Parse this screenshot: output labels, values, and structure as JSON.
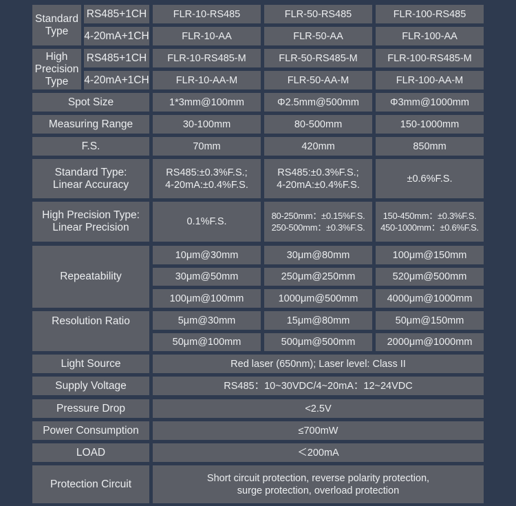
{
  "rows": {
    "standard_type": {
      "label": "Standard\nType",
      "sub": [
        {
          "label": "RS485+1CH",
          "values": [
            "FLR-10-RS485",
            "FLR-50-RS485",
            "FLR-100-RS485"
          ]
        },
        {
          "label": "4-20mA+1CH",
          "values": [
            "FLR-10-AA",
            "FLR-50-AA",
            "FLR-100-AA"
          ]
        }
      ]
    },
    "high_precision_type": {
      "label": "High\nPrecision\nType",
      "sub": [
        {
          "label": "RS485+1CH",
          "values": [
            "FLR-10-RS485-M",
            "FLR-50-RS485-M",
            "FLR-100-RS485-M"
          ]
        },
        {
          "label": "4-20mA+1CH",
          "values": [
            "FLR-10-AA-M",
            "FLR-50-AA-M",
            "FLR-100-AA-M"
          ]
        }
      ]
    },
    "spot_size": {
      "label": "Spot Size",
      "values": [
        "1*3mm@100mm",
        "Φ2.5mm@500mm",
        "Φ3mm@1000mm"
      ]
    },
    "measuring_range": {
      "label": "Measuring Range",
      "values": [
        "30-100mm",
        "80-500mm",
        "150-1000mm"
      ]
    },
    "fs": {
      "label": "F.S.",
      "values": [
        "70mm",
        "420mm",
        "850mm"
      ]
    },
    "linear_accuracy": {
      "label": "Standard Type:\nLinear Accuracy",
      "values": [
        "RS485:±0.3%F.S.;\n4-20mA:±0.4%F.S.",
        "RS485:±0.3%F.S.;\n4-20mA:±0.4%F.S.",
        "±0.6%F.S."
      ]
    },
    "linear_precision": {
      "label": "High Precision Type:\nLinear Precision",
      "values": [
        "0.1%F.S.",
        "80-250mm：±0.15%F.S.\n250-500mm：±0.3%F.S.",
        "150-450mm：±0.3%F.S.\n450-1000mm：±0.6%F.S."
      ]
    },
    "repeatability": {
      "label": "Repeatability",
      "values": [
        [
          "10μm@30mm",
          "30μm@80mm",
          "100μm@150mm"
        ],
        [
          "30μm@50mm",
          "250μm@250mm",
          "520μm@500mm"
        ],
        [
          "100μm@100mm",
          "1000μm@500mm",
          "4000μm@1000mm"
        ]
      ]
    },
    "resolution_ratio": {
      "label": "Resolution Ratio",
      "values": [
        [
          "5μm@30mm",
          "15μm@80mm",
          "50μm@150mm"
        ],
        [
          "50μm@100mm",
          "500μm@500mm",
          "2000μm@1000mm"
        ]
      ]
    },
    "light_source": {
      "label": "Light Source",
      "value": "Red laser (650nm); Laser level: Class II"
    },
    "supply_voltage": {
      "label": "Supply Voltage",
      "value": "RS485：10~30VDC/4~20mA：12~24VDC"
    },
    "pressure_drop": {
      "label": "Pressure Drop",
      "value": "<2.5V"
    },
    "power_consumption": {
      "label": "Power Consumption",
      "value": "≤700mW"
    },
    "load": {
      "label": "LOAD",
      "value": "＜200mA"
    },
    "protection_circuit": {
      "label": "Protection Circuit",
      "value": "Short circuit protection, reverse polarity protection,\nsurge protection, overload protection"
    }
  },
  "colors": {
    "background": "#2e3a4f",
    "cell": "#5b5e66",
    "text": "#eceef0"
  }
}
